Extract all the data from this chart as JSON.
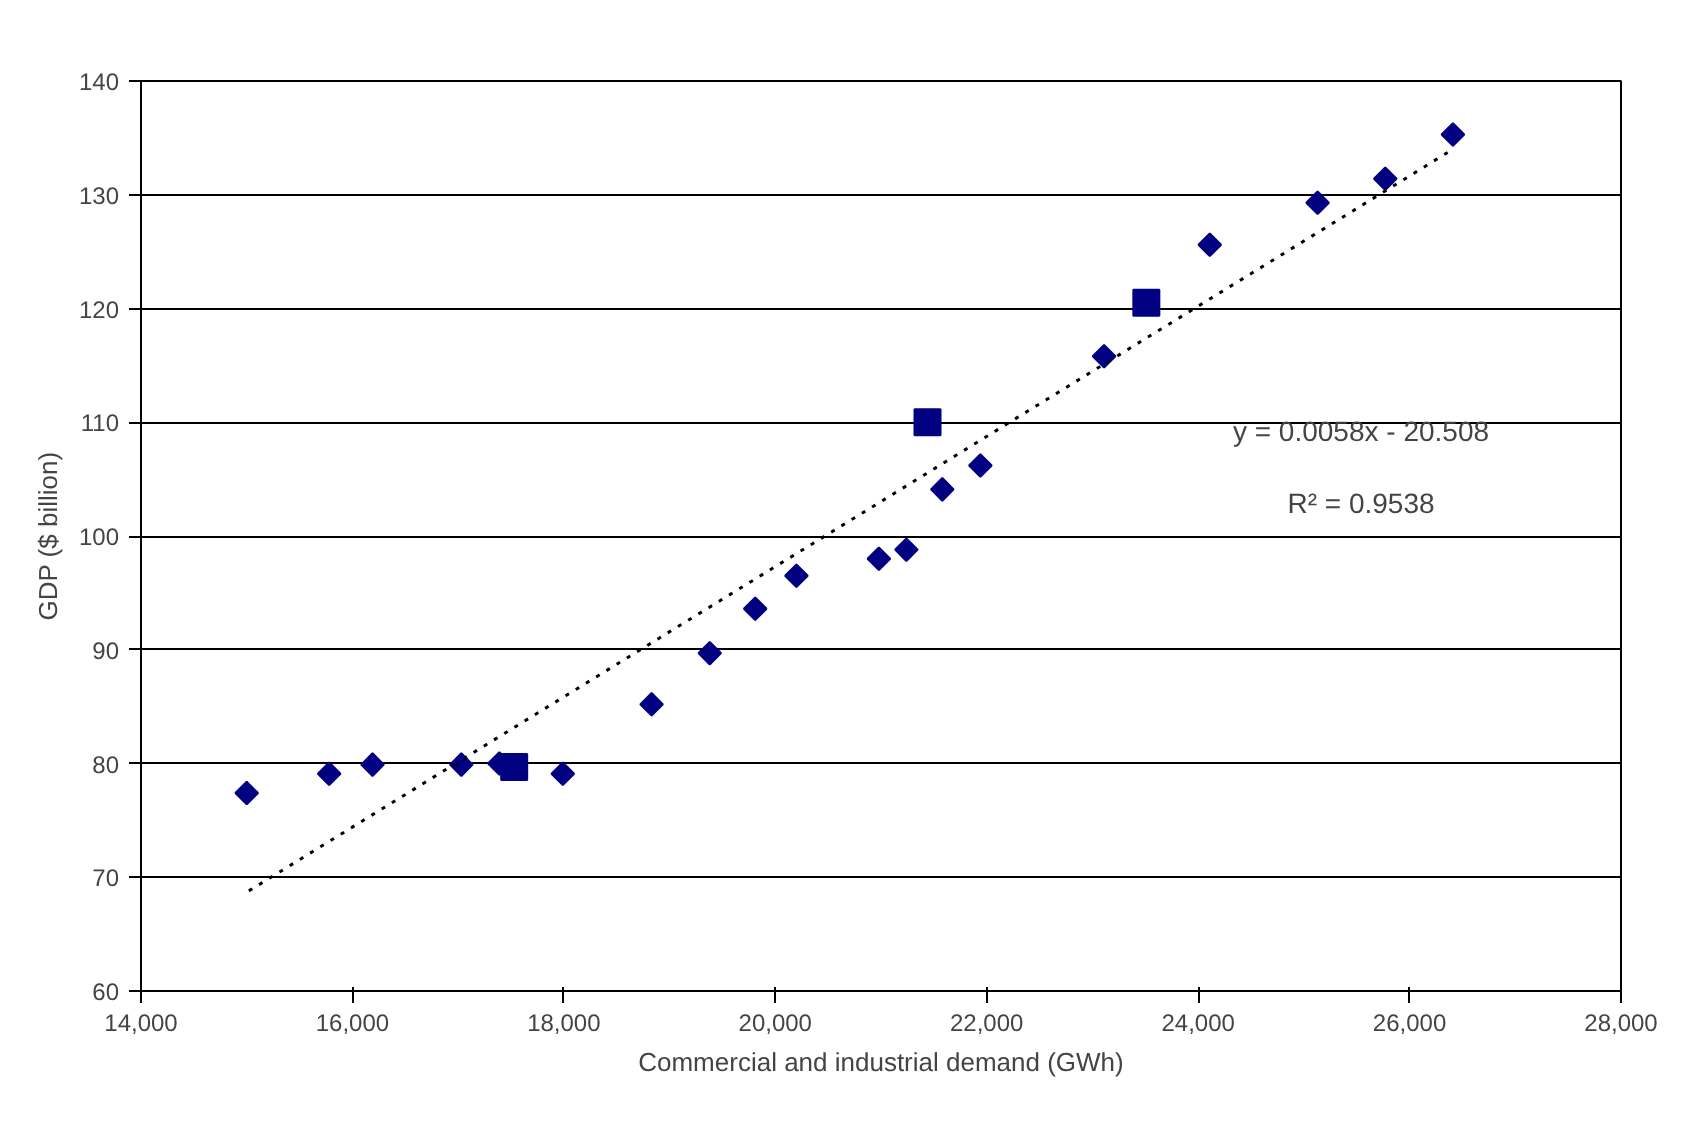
{
  "chart_data": {
    "type": "scatter",
    "xlabel": "Commercial and industrial demand (GWh)",
    "ylabel": "GDP ($ billion)",
    "xlim": [
      14000,
      28000
    ],
    "xticks": [
      {
        "value": 14000,
        "label": "14,000"
      },
      {
        "value": 16000,
        "label": "16,000"
      },
      {
        "value": 18000,
        "label": "18,000"
      },
      {
        "value": 20000,
        "label": "20,000"
      },
      {
        "value": 22000,
        "label": "22,000"
      },
      {
        "value": 24000,
        "label": "24,000"
      },
      {
        "value": 26000,
        "label": "26,000"
      },
      {
        "value": 28000,
        "label": "28,000"
      }
    ],
    "ylim": [
      60,
      140
    ],
    "yticks": [
      60,
      70,
      80,
      90,
      100,
      110,
      120,
      130,
      140
    ],
    "grid": "y",
    "series": [
      {
        "marker": "diamond",
        "color": "#000080",
        "x": [
          15000,
          15780,
          16190,
          17030,
          17390,
          17990,
          18830,
          19380,
          19810,
          20200,
          20980,
          21240,
          21580,
          21940,
          23110,
          24110,
          25130,
          25770,
          26410
        ],
        "values": [
          77.4,
          79.1,
          79.9,
          79.9,
          80,
          79.1,
          85.2,
          89.7,
          93.6,
          96.5,
          98,
          98.8,
          104.1,
          106.2,
          115.8,
          125.6,
          129.3,
          131.4,
          135.3
        ]
      },
      {
        "marker": "square",
        "color": "#000080",
        "x": [
          17530,
          21440,
          23510
        ],
        "values": [
          79.7,
          110,
          120.5
        ]
      },
      {
        "type": "line",
        "marker": "none",
        "line_style": "dotted",
        "color": "#000000",
        "x": [
          15020,
          26410
        ],
        "values": [
          68.8,
          134
        ]
      }
    ],
    "annotations": [
      "y = 0.0058x - 20.508",
      "R² = 0.9538"
    ]
  }
}
